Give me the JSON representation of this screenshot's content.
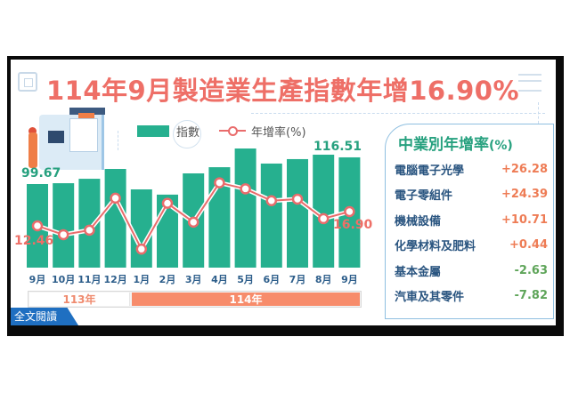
{
  "title": "114年9月製造業生產指數年增16.90%",
  "legend": {
    "bar_label": "指數",
    "line_label": "年增率(%)"
  },
  "read_more": "全文閱讀",
  "year_bar": {
    "y113": "113年",
    "y114": "114年"
  },
  "labels": {
    "first_index": "99.67",
    "last_index": "116.51",
    "first_rate": "12.46",
    "last_rate": "16.90"
  },
  "colors": {
    "title": "#ee6f67",
    "bar": "#26b08f",
    "line": "#e96c6c",
    "month": "#2c5d8a",
    "panel_title": "#27a17f",
    "positive": "#ee7c55",
    "negative": "#5fa55a",
    "tag": "#1f6fc1",
    "year114": "#f78c6b"
  },
  "panel": {
    "title": "中業別年增率",
    "unit": "(%)",
    "rows": [
      {
        "name": "電腦電子光學",
        "rate": "+26.28",
        "sign": "pos"
      },
      {
        "name": "電子零組件",
        "rate": "+24.39",
        "sign": "pos"
      },
      {
        "name": "機械設備",
        "rate": "+10.71",
        "sign": "pos"
      },
      {
        "name": "化學材料及肥料",
        "rate": "+0.44",
        "sign": "pos"
      },
      {
        "name": "基本金屬",
        "rate": "-2.63",
        "sign": "neg"
      },
      {
        "name": "汽車及其零件",
        "rate": "-7.82",
        "sign": "neg"
      }
    ]
  },
  "chart_data": {
    "type": "bar",
    "title": "114年9月製造業生產指數年增16.90%",
    "categories": [
      "9月",
      "10月",
      "11月",
      "12月",
      "1月",
      "2月",
      "3月",
      "4月",
      "5月",
      "6月",
      "7月",
      "8月",
      "9月"
    ],
    "year_groups": [
      {
        "label": "113年",
        "months": [
          "9月",
          "10月",
          "11月",
          "12月"
        ]
      },
      {
        "label": "114年",
        "months": [
          "1月",
          "2月",
          "3月",
          "4月",
          "5月",
          "6月",
          "7月",
          "8月",
          "9月"
        ]
      }
    ],
    "series": [
      {
        "name": "指數",
        "type": "bar",
        "values": [
          99.67,
          100.2,
          103.0,
          109.2,
          96.3,
          93.0,
          106.4,
          110.3,
          122.1,
          112.6,
          115.4,
          118.2,
          116.51
        ]
      },
      {
        "name": "年增率(%)",
        "type": "line",
        "values": [
          12.46,
          9.7,
          11.1,
          21.1,
          5.2,
          19.5,
          13.6,
          25.9,
          24.0,
          20.3,
          20.8,
          14.7,
          16.9
        ]
      }
    ],
    "data_labels": {
      "bar_first": "99.67",
      "bar_last": "116.51",
      "line_first": "12.46",
      "line_last": "16.90"
    },
    "xlabel": "",
    "ylabel": "",
    "grid": false,
    "legend_position": "top",
    "side_table": {
      "title": "中業別年增率(%)",
      "rows": [
        [
          "電腦電子光學",
          26.28
        ],
        [
          "電子零組件",
          24.39
        ],
        [
          "機械設備",
          10.71
        ],
        [
          "化學材料及肥料",
          0.44
        ],
        [
          "基本金屬",
          -2.63
        ],
        [
          "汽車及其零件",
          -7.82
        ]
      ]
    }
  }
}
